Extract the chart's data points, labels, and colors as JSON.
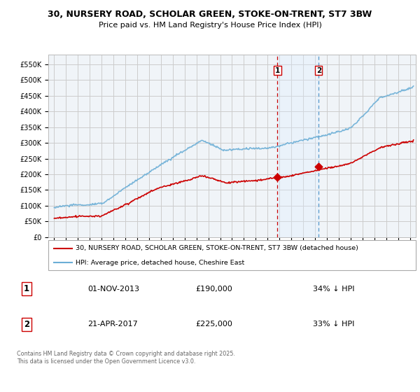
{
  "title": "30, NURSERY ROAD, SCHOLAR GREEN, STOKE-ON-TRENT, ST7 3BW",
  "subtitle": "Price paid vs. HM Land Registry's House Price Index (HPI)",
  "ylabel_ticks": [
    "£0",
    "£50K",
    "£100K",
    "£150K",
    "£200K",
    "£250K",
    "£300K",
    "£350K",
    "£400K",
    "£450K",
    "£500K",
    "£550K"
  ],
  "ytick_values": [
    0,
    50000,
    100000,
    150000,
    200000,
    250000,
    300000,
    350000,
    400000,
    450000,
    500000,
    550000
  ],
  "ylim": [
    0,
    580000
  ],
  "xlim_start": 1994.5,
  "xlim_end": 2025.5,
  "bg_color": "#f0f4f8",
  "grid_color": "#cccccc",
  "hpi_color": "#6baed6",
  "price_color": "#cc0000",
  "marker1_date": 2013.83,
  "marker2_date": 2017.31,
  "marker1_price": 190000,
  "marker2_price": 225000,
  "shade_color": "#ddeeff",
  "legend_house": "30, NURSERY ROAD, SCHOLAR GREEN, STOKE-ON-TRENT, ST7 3BW (detached house)",
  "legend_hpi": "HPI: Average price, detached house, Cheshire East",
  "table_row1": [
    "1",
    "01-NOV-2013",
    "£190,000",
    "34% ↓ HPI"
  ],
  "table_row2": [
    "2",
    "21-APR-2017",
    "£225,000",
    "33% ↓ HPI"
  ],
  "footer": "Contains HM Land Registry data © Crown copyright and database right 2025.\nThis data is licensed under the Open Government Licence v3.0.",
  "xticks": [
    1995,
    1996,
    1997,
    1998,
    1999,
    2000,
    2001,
    2002,
    2003,
    2004,
    2005,
    2006,
    2007,
    2008,
    2009,
    2010,
    2011,
    2012,
    2013,
    2014,
    2015,
    2016,
    2017,
    2018,
    2019,
    2020,
    2021,
    2022,
    2023,
    2024,
    2025
  ]
}
